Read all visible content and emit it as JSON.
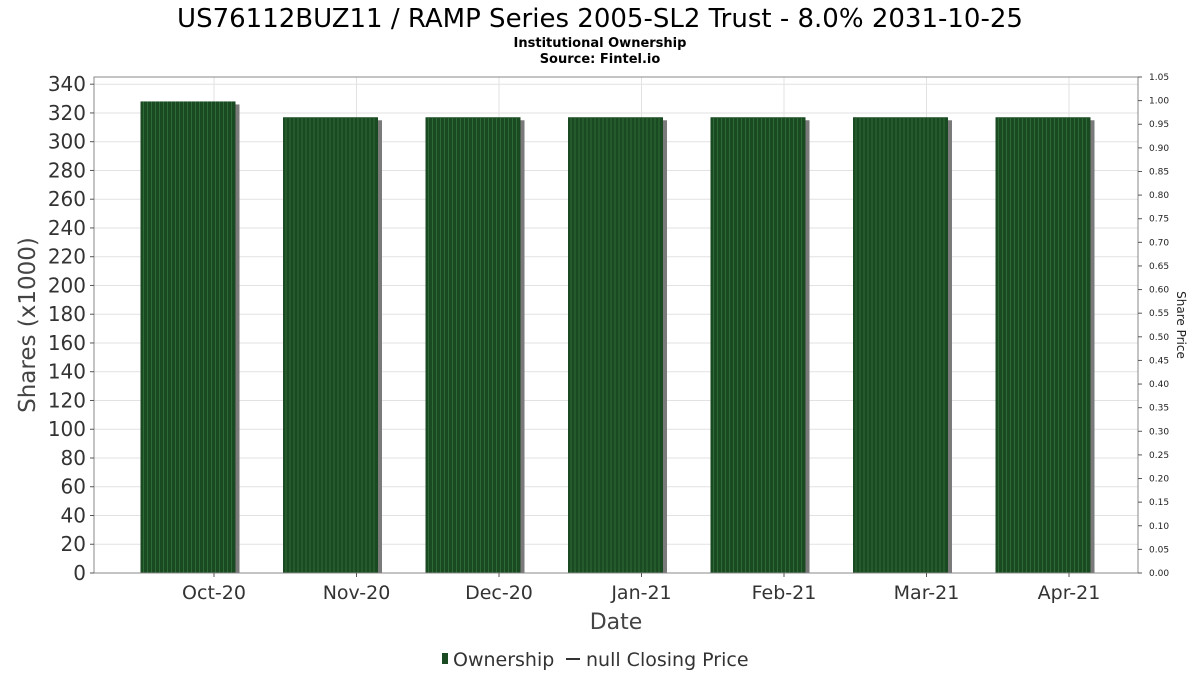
{
  "title": "US76112BUZ11 / RAMP Series 2005-SL2 Trust - 8.0% 2031-10-25",
  "subtitle_line1": "Institutional Ownership",
  "subtitle_line2": "Source: Fintel.io",
  "legend": {
    "ownership": "Ownership",
    "price": "null Closing Price"
  },
  "colors": {
    "bar": "#1a4a22",
    "bar_stripe": "#2e6a35",
    "bar_shadow": "#7a7a7a",
    "grid": "#e2e2e2",
    "axis": "#555555",
    "price_line": "#333333"
  },
  "chart_data": {
    "type": "bar",
    "categories": [
      "Oct-20",
      "Nov-20",
      "Dec-20",
      "Jan-21",
      "Feb-21",
      "Mar-21",
      "Apr-21"
    ],
    "series": [
      {
        "name": "Ownership",
        "values": [
          328,
          317,
          317,
          317,
          317,
          317,
          317
        ]
      }
    ],
    "xlabel": "Date",
    "ylabel": "Shares (x1000)",
    "ylim": [
      0,
      345
    ],
    "y_ticks": [
      0,
      20,
      40,
      60,
      80,
      100,
      120,
      140,
      160,
      180,
      200,
      220,
      240,
      260,
      280,
      300,
      320,
      340
    ],
    "y2label": "Share Price",
    "y2lim": [
      0,
      1.05
    ],
    "y2_ticks": [
      "0.00",
      "0.05",
      "0.10",
      "0.15",
      "0.20",
      "0.25",
      "0.30",
      "0.35",
      "0.40",
      "0.45",
      "0.50",
      "0.55",
      "0.60",
      "0.65",
      "0.70",
      "0.75",
      "0.80",
      "0.85",
      "0.90",
      "0.95",
      "1.00",
      "1.05"
    ],
    "grid": true,
    "legend_position": "bottom"
  }
}
